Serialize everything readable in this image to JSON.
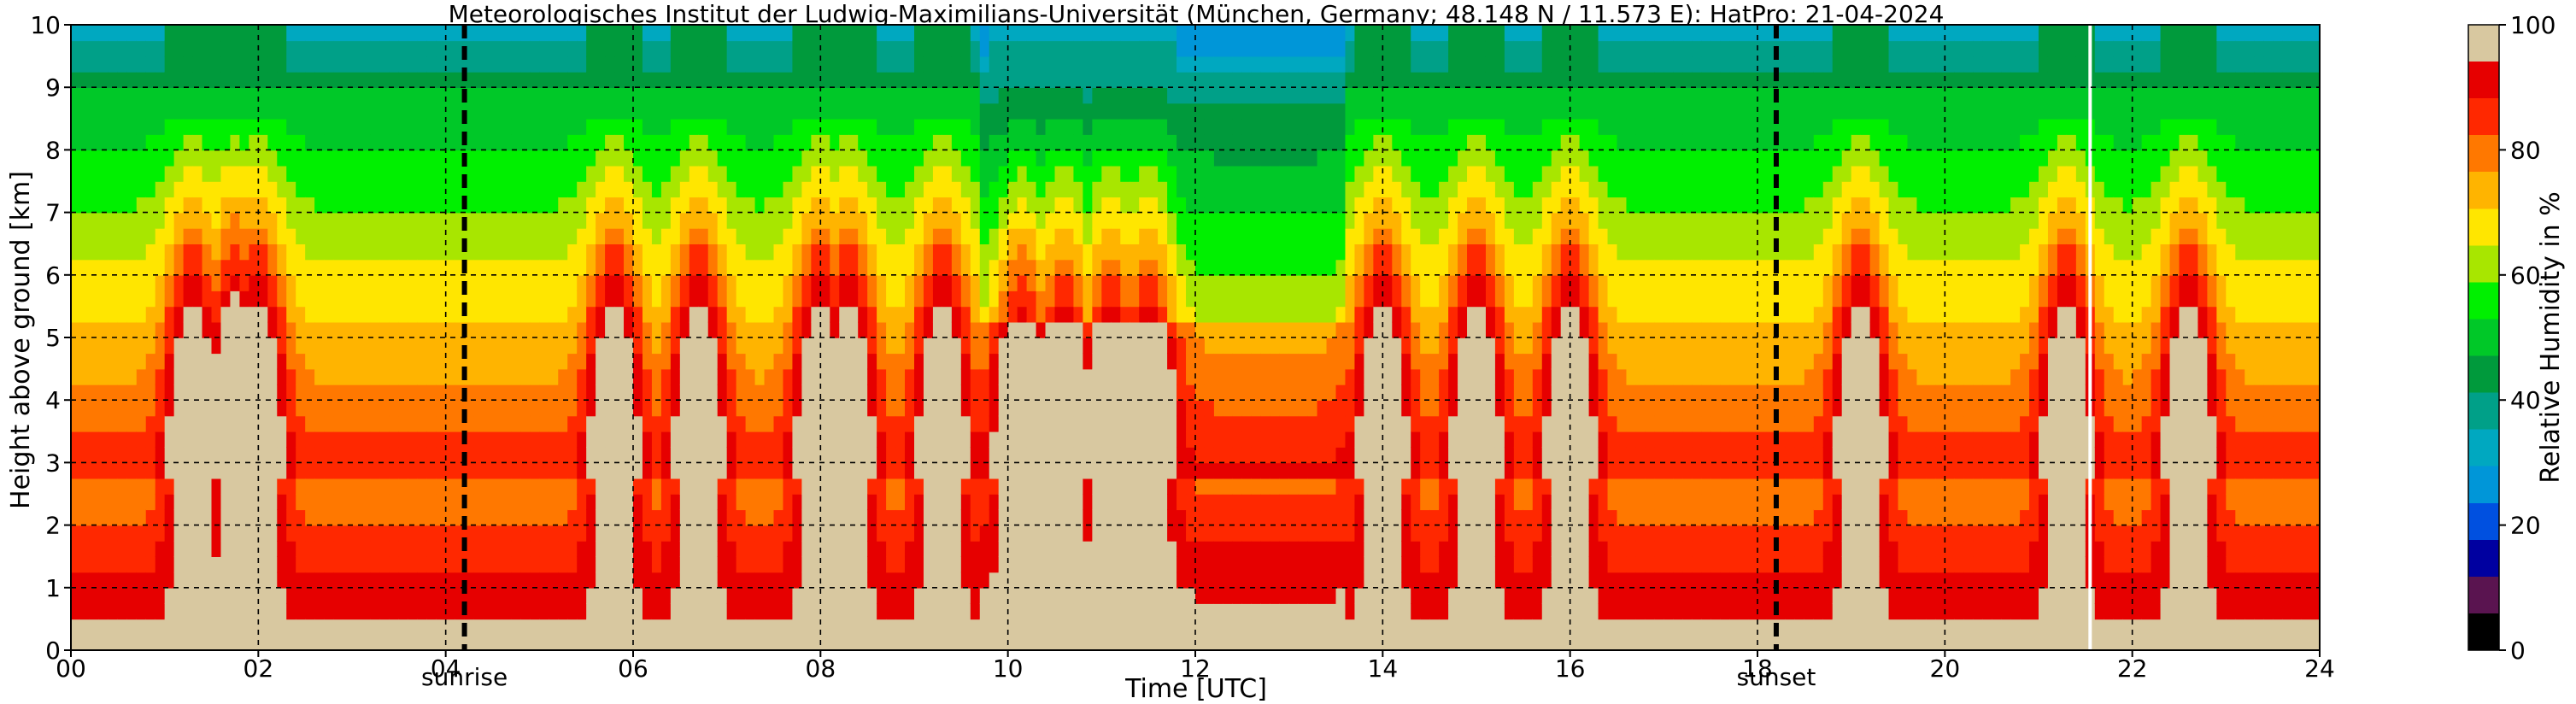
{
  "chart_data": {
    "type": "heatmap",
    "title": "Meteorologisches Institut der Ludwig-Maximilians-Universität (München, Germany; 48.148 N / 11.573 E):    HatPro: 21-04-2024",
    "xlabel": "Time [UTC]",
    "ylabel": "Height above ground [km]",
    "xlim": [
      0,
      24
    ],
    "ylim": [
      0,
      10
    ],
    "x_ticks": [
      "00",
      "02",
      "04",
      "06",
      "08",
      "10",
      "12",
      "14",
      "16",
      "18",
      "20",
      "22",
      "24"
    ],
    "y_ticks": [
      "0",
      "1",
      "2",
      "3",
      "4",
      "5",
      "6",
      "7",
      "8",
      "9",
      "10"
    ],
    "grid": true,
    "colorbar": {
      "label": "Relative Humidity in %",
      "range": [
        0,
        100
      ],
      "ticks": [
        "0",
        "20",
        "40",
        "60",
        "80",
        "100"
      ],
      "colors": [
        "#000000",
        "#5a1450",
        "#0000a0",
        "#0050e0",
        "#0096d8",
        "#00a8c0",
        "#00a088",
        "#009a3c",
        "#00c828",
        "#00f000",
        "#a8e600",
        "#ffe600",
        "#ffb400",
        "#ff7800",
        "#ff2800",
        "#e60000",
        "#d8c8a0"
      ]
    },
    "annotations": [
      {
        "label": "sunrise",
        "x": 4.2
      },
      {
        "label": "sunset",
        "x": 18.2
      }
    ],
    "humid_columns_hours": [
      1.3,
      1.75,
      2.0,
      5.8,
      6.7,
      8.0,
      8.3,
      9.3,
      10.15,
      10.6,
      11.1,
      11.5,
      14.0,
      15.0,
      16.0,
      19.1,
      21.3,
      22.6
    ],
    "data_gap_hour": 21.55
  }
}
